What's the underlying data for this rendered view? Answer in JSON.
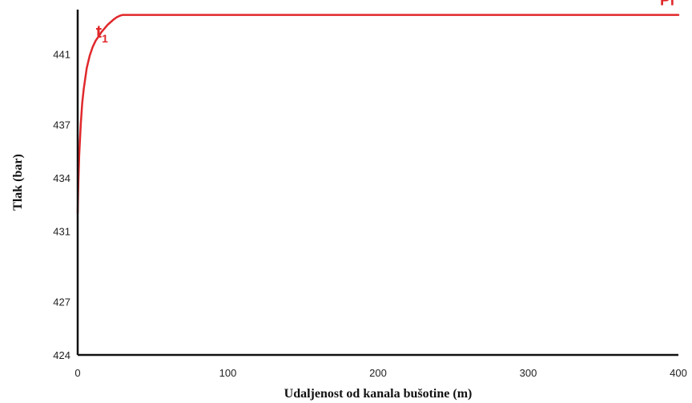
{
  "chart_data": {
    "type": "line",
    "title": "",
    "xlabel": "Udaljenost od kanala bušotine (m)",
    "ylabel": "Tlak (bar)",
    "xlim": [
      0,
      400
    ],
    "ylim": [
      424,
      443.5
    ],
    "x_ticks": [
      0,
      100,
      200,
      300,
      400
    ],
    "y_ticks": [
      424,
      427,
      431,
      434,
      437,
      441
    ],
    "grid": false,
    "colors": {
      "series": "#e0282b",
      "axis": "#111111"
    },
    "series": [
      {
        "name": "Pi",
        "x": [
          0,
          0.5,
          1,
          2,
          3,
          4,
          5,
          6,
          8,
          10,
          12,
          14,
          16,
          18,
          20,
          22,
          24,
          26,
          28,
          30,
          32,
          60,
          100,
          150,
          200,
          250,
          300,
          350,
          400
        ],
        "y": [
          432.0,
          433.9,
          435.3,
          437.0,
          438.2,
          439.0,
          439.6,
          440.2,
          440.9,
          441.4,
          441.75,
          442.0,
          442.25,
          442.45,
          442.65,
          442.8,
          442.95,
          443.07,
          443.15,
          443.2,
          443.2,
          443.2,
          443.2,
          443.2,
          443.2,
          443.2,
          443.2,
          443.2,
          443.2
        ]
      }
    ],
    "annotations": [
      {
        "label": "t",
        "subscript": "1",
        "x": 10,
        "y": 442.0
      },
      {
        "label": "Pi",
        "x": 400,
        "y": 443.2
      }
    ]
  }
}
